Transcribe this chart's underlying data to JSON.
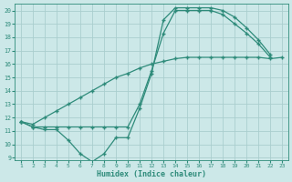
{
  "line1_x": [
    1,
    2,
    3,
    4,
    5,
    6,
    7,
    8,
    9,
    10,
    11,
    12,
    13,
    14,
    15,
    16,
    17,
    18,
    19,
    20,
    21,
    22
  ],
  "line1_y": [
    11.7,
    11.3,
    11.1,
    11.1,
    10.3,
    9.3,
    8.7,
    9.3,
    10.5,
    10.5,
    12.7,
    15.3,
    19.3,
    20.2,
    20.2,
    20.2,
    20.2,
    20.0,
    19.5,
    18.7,
    17.8,
    16.7
  ],
  "line2_x": [
    1,
    2,
    3,
    4,
    5,
    6,
    7,
    8,
    9,
    10,
    11,
    12,
    13,
    14,
    15,
    16,
    17,
    18,
    19,
    20,
    21,
    22,
    23
  ],
  "line2_y": [
    11.7,
    11.5,
    12.0,
    12.5,
    13.0,
    13.5,
    14.0,
    14.5,
    15.0,
    15.3,
    15.7,
    16.0,
    16.2,
    16.4,
    16.5,
    16.5,
    16.5,
    16.5,
    16.5,
    16.5,
    16.5,
    16.4,
    16.5
  ],
  "line3_x": [
    1,
    2,
    3,
    4,
    5,
    6,
    7,
    8,
    9,
    10,
    11,
    12,
    13,
    14,
    15,
    16,
    17,
    18,
    19,
    20,
    21,
    22,
    23
  ],
  "line3_y": [
    11.7,
    11.3,
    11.3,
    11.3,
    11.3,
    11.3,
    11.3,
    11.3,
    11.3,
    11.3,
    13.0,
    15.5,
    18.3,
    20.0,
    20.0,
    20.0,
    20.0,
    19.7,
    19.0,
    18.3,
    17.5,
    16.5,
    null
  ],
  "xlabel": "Humidex (Indice chaleur)",
  "ylim": [
    9,
    20
  ],
  "xlim": [
    1,
    23
  ],
  "yticks": [
    9,
    10,
    11,
    12,
    13,
    14,
    15,
    16,
    17,
    18,
    19,
    20
  ],
  "xticks": [
    1,
    2,
    3,
    4,
    5,
    6,
    7,
    8,
    9,
    10,
    11,
    12,
    13,
    14,
    15,
    16,
    17,
    18,
    19,
    20,
    21,
    22,
    23
  ],
  "line_color": "#2e8b7a",
  "bg_color": "#cce8e8",
  "grid_color": "#aacece"
}
